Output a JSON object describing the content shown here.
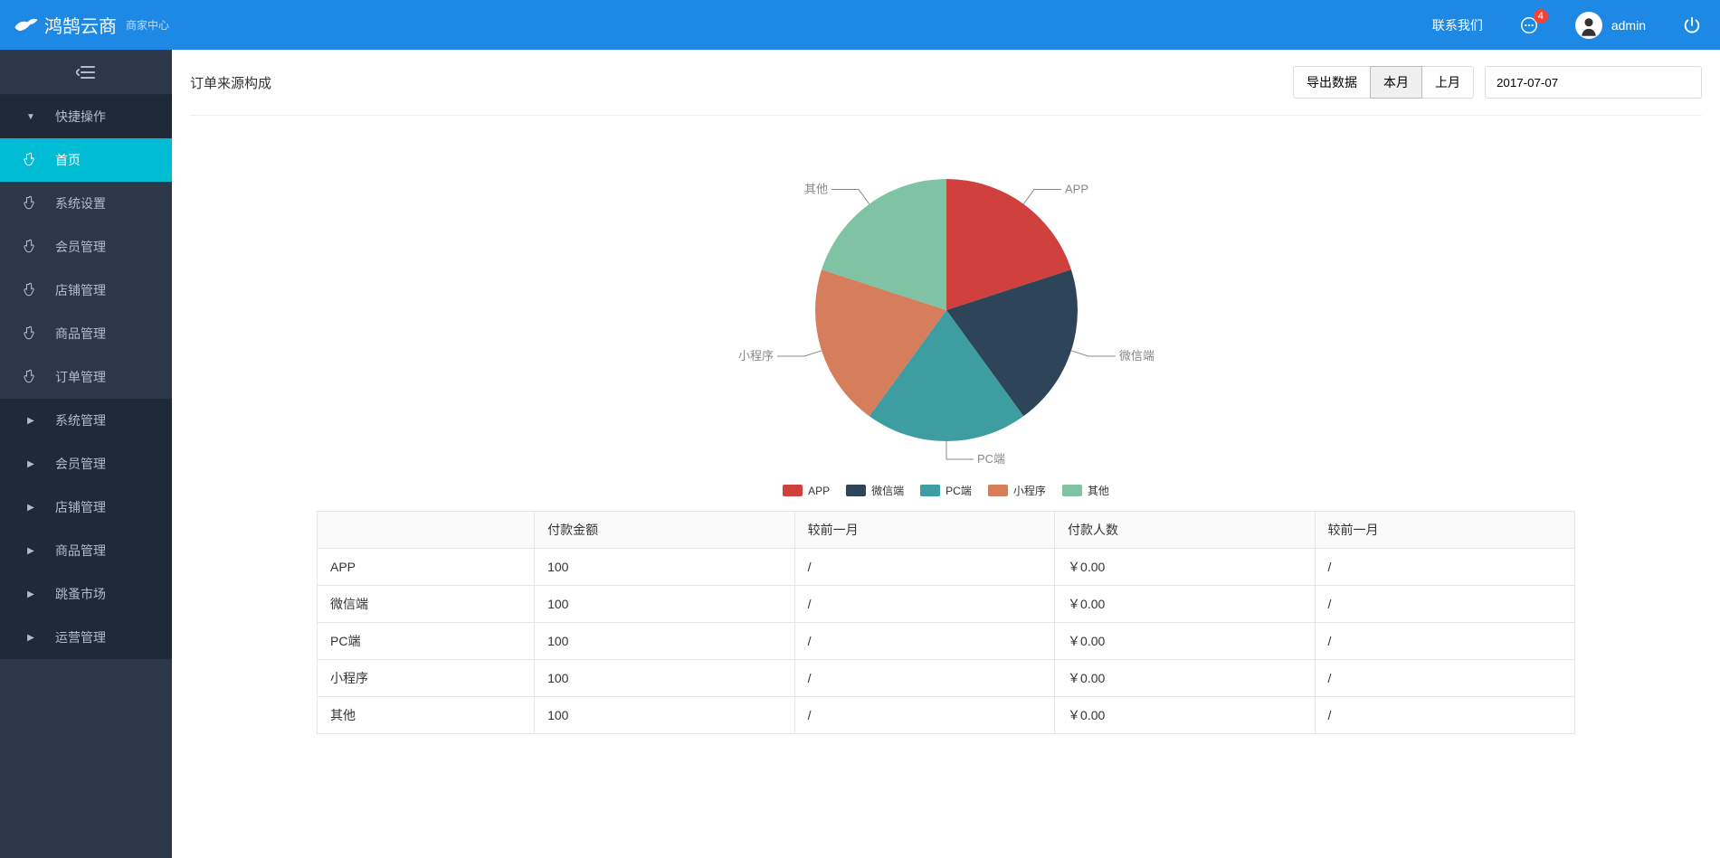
{
  "header": {
    "brand": "鸿鹄云商",
    "sub": "商家中心",
    "contact": "联系我们",
    "badge": "4",
    "username": "admin"
  },
  "sidebar": {
    "quick": "快捷操作",
    "items1": [
      {
        "label": "首页",
        "active": true
      },
      {
        "label": "系统设置"
      },
      {
        "label": "会员管理"
      },
      {
        "label": "店铺管理"
      },
      {
        "label": "商品管理"
      },
      {
        "label": "订单管理"
      }
    ],
    "items2": [
      {
        "label": "系统管理"
      },
      {
        "label": "会员管理"
      },
      {
        "label": "店铺管理"
      },
      {
        "label": "商品管理"
      },
      {
        "label": "跳蚤市场"
      },
      {
        "label": "运营管理"
      }
    ]
  },
  "panel": {
    "title": "订单来源构成",
    "export": "导出数据",
    "thisMonth": "本月",
    "lastMonth": "上月",
    "date": "2017-07-07"
  },
  "pie": {
    "slices": [
      {
        "name": "APP",
        "value": 20,
        "color": "#d0413e"
      },
      {
        "name": "微信端",
        "value": 20,
        "color": "#2e4458"
      },
      {
        "name": "PC端",
        "value": 20,
        "color": "#3d9da0"
      },
      {
        "name": "小程序",
        "value": 20,
        "color": "#d67d5b"
      },
      {
        "name": "其他",
        "value": 20,
        "color": "#7fc3a4"
      }
    ],
    "labelColor": "#888",
    "radius": 145
  },
  "legend": {
    "items": [
      {
        "name": "APP",
        "color": "#d0413e"
      },
      {
        "name": "微信端",
        "color": "#2e4458"
      },
      {
        "name": "PC端",
        "color": "#3d9da0"
      },
      {
        "name": "小程序",
        "color": "#d67d5b"
      },
      {
        "name": "其他",
        "color": "#7fc3a4"
      }
    ]
  },
  "table": {
    "cols": [
      "",
      "付款金额",
      "较前一月",
      "付款人数",
      "较前一月"
    ],
    "rows": [
      [
        "APP",
        "100",
        "/",
        "￥0.00",
        "/"
      ],
      [
        "微信端",
        "100",
        "/",
        "￥0.00",
        "/"
      ],
      [
        "PC端",
        "100",
        "/",
        "￥0.00",
        "/"
      ],
      [
        "小程序",
        "100",
        "/",
        "￥0.00",
        "/"
      ],
      [
        "其他",
        "100",
        "/",
        "￥0.00",
        "/"
      ]
    ]
  }
}
